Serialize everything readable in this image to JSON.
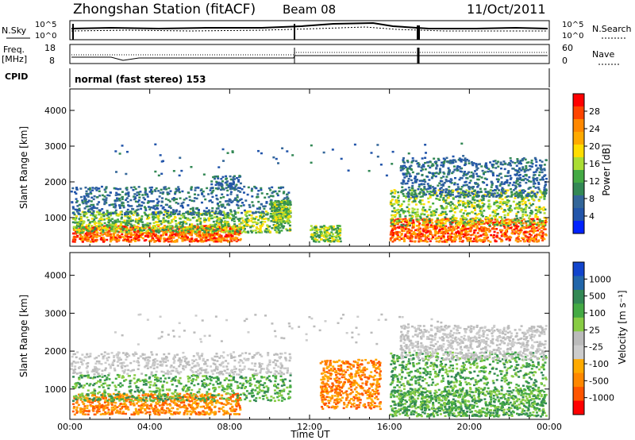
{
  "header": {
    "station": "Zhongshan Station (fitACF)",
    "beam": "Beam 08",
    "date": "11/Oct/2011"
  },
  "top_panels": {
    "nsky_label": "N.Sky",
    "nsearch_label": "N.Search",
    "nsky_ticks": [
      "10^5",
      "10^0"
    ],
    "nsearch_ticks": [
      "10^5",
      "10^0"
    ],
    "freq_label": "Freq.",
    "freq_unit": "[MHz]",
    "freq_ticks": [
      "18",
      "8"
    ],
    "nave_label": "Nave",
    "nave_ticks": [
      "60",
      "0"
    ],
    "cpid_label": "CPID",
    "cpid_text": "normal (fast stereo) 153"
  },
  "chart_data": [
    {
      "type": "heatmap",
      "name": "power-panel",
      "ylabel": "Slant Range [km]",
      "ylim": [
        200,
        4600
      ],
      "yticks": [
        1000,
        2000,
        3000,
        4000
      ],
      "xlim": [
        0,
        24
      ],
      "colorbar_label": "Power [dB]",
      "colorbar_ticks": [
        "28",
        "24",
        "20",
        "16",
        "12",
        "8",
        "4"
      ],
      "colorbar_colors": [
        "#ff0000",
        "#ff4400",
        "#ff8800",
        "#ffaa00",
        "#ffdd00",
        "#aadd33",
        "#44aa44",
        "#338855",
        "#336699",
        "#2255aa",
        "#0022ff"
      ]
    },
    {
      "type": "heatmap",
      "name": "velocity-panel",
      "ylabel": "Slant Range [km]",
      "ylim": [
        200,
        4600
      ],
      "yticks": [
        1000,
        2000,
        3000,
        4000
      ],
      "xlim": [
        0,
        24
      ],
      "xlabel": "Time UT",
      "xticks": [
        "00:00",
        "04:00",
        "08:00",
        "12:00",
        "16:00",
        "20:00",
        "00:00"
      ],
      "colorbar_label": "Velocity [m s⁻¹]",
      "colorbar_ticks": [
        "1000",
        "500",
        "100",
        "25",
        "-25",
        "-100",
        "-500",
        "-1000"
      ],
      "colorbar_colors": [
        "#1144cc",
        "#2266aa",
        "#338855",
        "#44aa44",
        "#88cc44",
        "#bbbbbb",
        "#cccccc",
        "#ffaa00",
        "#ff8800",
        "#ff5500",
        "#ff0000"
      ]
    }
  ]
}
